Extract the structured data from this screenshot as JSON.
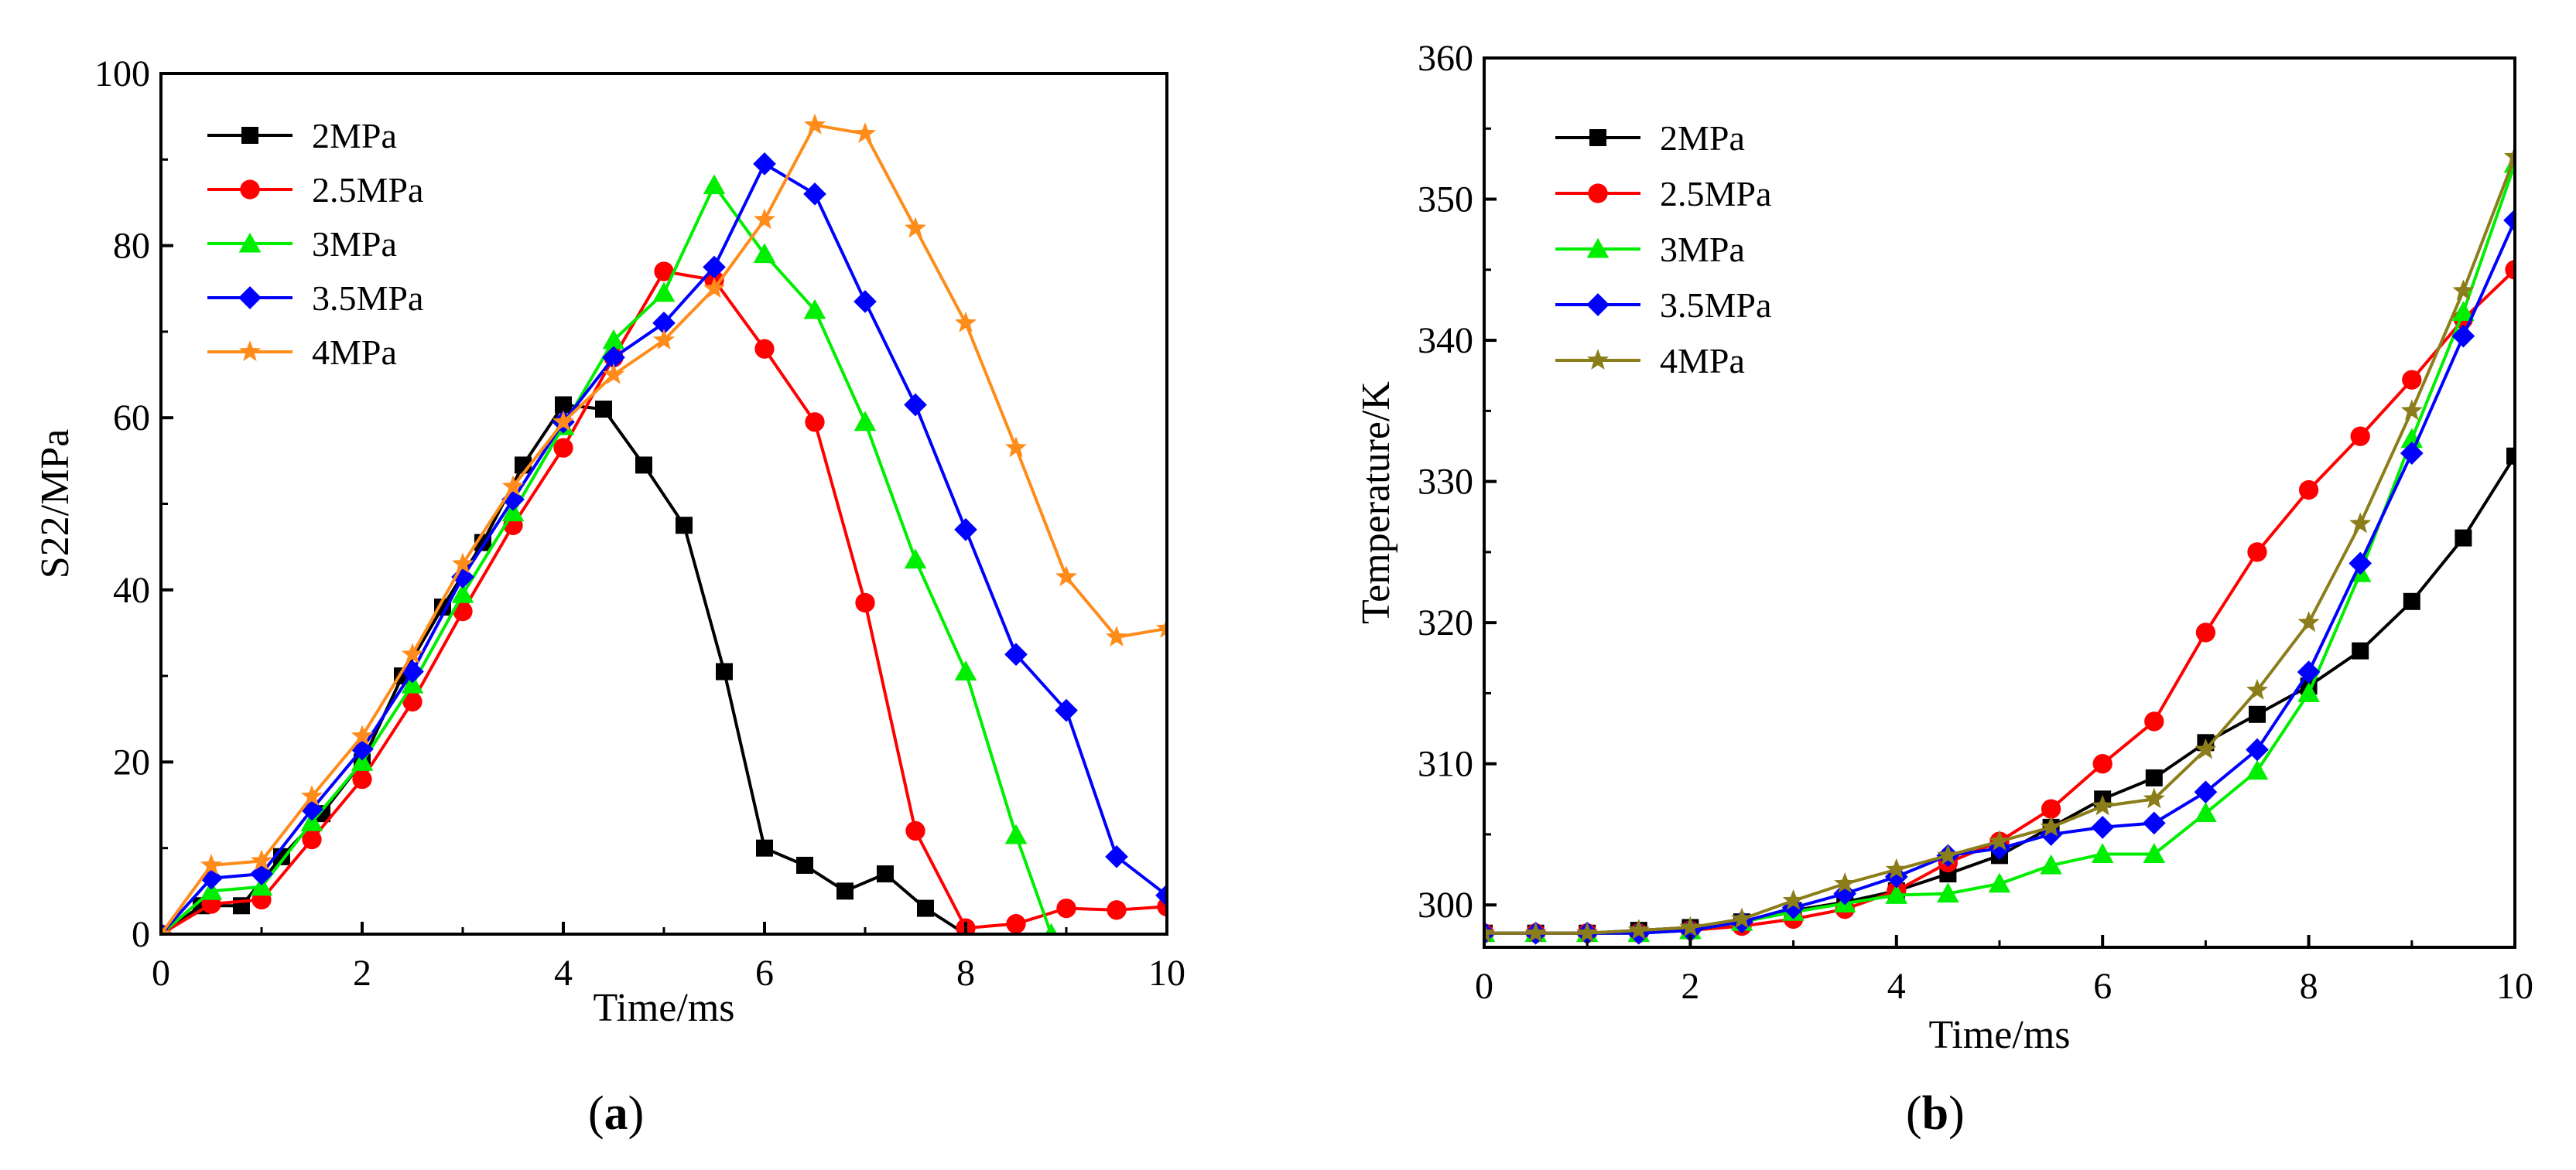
{
  "captions": {
    "a": "a",
    "b": "b"
  },
  "chart_data": [
    {
      "type": "line",
      "panel": "a",
      "title": "",
      "xlabel": "Time/ms",
      "ylabel": "S22/MPa",
      "xlim": [
        0,
        10
      ],
      "ylim": [
        0,
        100
      ],
      "xticks": [
        0,
        2,
        4,
        6,
        8,
        10
      ],
      "yticks": [
        0,
        20,
        40,
        60,
        80,
        100
      ],
      "grid": false,
      "legend_position": "top-left",
      "series": [
        {
          "name": "2MPa",
          "color": "#000000",
          "marker": "square",
          "x": [
            0,
            0.4,
            0.8,
            1.2,
            1.6,
            2.0,
            2.4,
            2.8,
            3.2,
            3.6,
            4.0,
            4.4,
            4.8,
            5.2,
            5.6,
            6.0,
            6.4,
            6.8,
            7.2,
            7.6,
            8.0
          ],
          "y": [
            0,
            3.3,
            3.3,
            9,
            14,
            20,
            30,
            38,
            45.5,
            54.5,
            61.5,
            61,
            54.5,
            47.5,
            30.5,
            10,
            8,
            5,
            7,
            3,
            0
          ]
        },
        {
          "name": "2.5MPa",
          "color": "#ff0000",
          "marker": "circle",
          "x": [
            0,
            0.5,
            1.0,
            1.5,
            2.0,
            2.5,
            3.0,
            3.5,
            4.0,
            4.5,
            5.0,
            5.5,
            6.0,
            6.5,
            7.0,
            7.5,
            8.0,
            8.5,
            9.0,
            9.5,
            10.0
          ],
          "y": [
            0,
            3.5,
            4,
            11,
            18,
            27,
            37.5,
            47.5,
            56.5,
            67,
            77,
            76,
            68,
            59.5,
            38.5,
            12,
            0.7,
            1.2,
            3,
            2.8,
            3.2
          ]
        },
        {
          "name": "3MPa",
          "color": "#00ee00",
          "marker": "triangle",
          "x": [
            0,
            0.5,
            1.0,
            1.5,
            2.0,
            2.5,
            3.0,
            3.5,
            4.0,
            4.5,
            5.0,
            5.5,
            6.0,
            6.5,
            7.0,
            7.5,
            8.0,
            8.5,
            8.85
          ],
          "y": [
            0,
            5,
            5.5,
            13,
            20,
            29,
            39.5,
            49,
            59,
            69,
            74.5,
            87,
            79,
            72.5,
            59.5,
            43.5,
            30.5,
            11.5,
            0
          ]
        },
        {
          "name": "3.5MPa",
          "color": "#0000ff",
          "marker": "diamond",
          "x": [
            0,
            0.5,
            1.0,
            1.5,
            2.0,
            2.5,
            3.0,
            3.5,
            4.0,
            4.5,
            5.0,
            5.5,
            6.0,
            6.5,
            7.0,
            7.5,
            8.0,
            8.5,
            9.0,
            9.5,
            10.0
          ],
          "y": [
            0,
            6.5,
            7,
            14.5,
            21.5,
            30.5,
            41.5,
            50.5,
            59.5,
            67,
            71,
            77.5,
            89.5,
            86,
            73.5,
            61.5,
            47,
            32.5,
            26,
            9,
            4.5
          ]
        },
        {
          "name": "4MPa",
          "color": "#ff8c1a",
          "marker": "star",
          "x": [
            0,
            0.5,
            1.0,
            1.5,
            2.0,
            2.5,
            3.0,
            3.5,
            4.0,
            4.5,
            5.0,
            5.5,
            6.0,
            6.5,
            7.0,
            7.5,
            8.0,
            8.5,
            9.0,
            9.5,
            10.0
          ],
          "y": [
            0,
            8,
            8.5,
            16,
            23,
            32.5,
            43,
            52,
            59.5,
            65,
            69,
            75,
            83,
            94,
            93,
            82,
            71,
            56.5,
            41.5,
            34.5,
            35.5
          ]
        }
      ]
    },
    {
      "type": "line",
      "panel": "b",
      "title": "",
      "xlabel": "Time/ms",
      "ylabel": "Temperature/K",
      "xlim": [
        0,
        10
      ],
      "ylim": [
        297,
        360
      ],
      "xticks": [
        0,
        2,
        4,
        6,
        8,
        10
      ],
      "yticks": [
        300,
        310,
        320,
        330,
        340,
        350,
        360
      ],
      "grid": false,
      "legend_position": "top-left",
      "series": [
        {
          "name": "2MPa",
          "color": "#000000",
          "marker": "square",
          "x": [
            0,
            0.5,
            1.0,
            1.5,
            2.0,
            2.5,
            3.0,
            3.5,
            4.0,
            4.5,
            5.0,
            5.5,
            6.0,
            6.5,
            7.0,
            7.5,
            8.0,
            8.5,
            9.0,
            9.5,
            10.0
          ],
          "y": [
            298,
            298,
            298,
            298.2,
            298.4,
            298.8,
            299.6,
            300.2,
            301,
            302.2,
            303.5,
            305.5,
            307.5,
            309,
            311.5,
            313.5,
            315.5,
            318,
            321.5,
            326,
            331.8
          ]
        },
        {
          "name": "2.5MPa",
          "color": "#ff0000",
          "marker": "circle",
          "x": [
            0,
            0.5,
            1.0,
            1.5,
            2.0,
            2.5,
            3.0,
            3.5,
            4.0,
            4.5,
            5.0,
            5.5,
            6.0,
            6.5,
            7.0,
            7.5,
            8.0,
            8.5,
            9.0,
            9.5,
            10.0
          ],
          "y": [
            298,
            298,
            298,
            298,
            298.2,
            298.5,
            299,
            299.7,
            301,
            303,
            304.5,
            306.8,
            310,
            313,
            319.3,
            325,
            329.4,
            333.2,
            337.2,
            341.5,
            345
          ]
        },
        {
          "name": "3MPa",
          "color": "#00ee00",
          "marker": "triangle",
          "x": [
            0,
            0.5,
            1.0,
            1.5,
            2.0,
            2.5,
            3.0,
            3.5,
            4.0,
            4.5,
            5.0,
            5.5,
            6.0,
            6.5,
            7.0,
            7.5,
            8.0,
            8.5,
            9.0,
            9.5,
            10.0
          ],
          "y": [
            298,
            298,
            298,
            298,
            298.2,
            298.8,
            299.5,
            300.1,
            300.7,
            300.8,
            301.5,
            302.8,
            303.6,
            303.6,
            306.5,
            309.5,
            315,
            323.5,
            333,
            342,
            352.5
          ]
        },
        {
          "name": "3.5MPa",
          "color": "#0000ff",
          "marker": "diamond",
          "x": [
            0,
            0.5,
            1.0,
            1.5,
            2.0,
            2.5,
            3.0,
            3.5,
            4.0,
            4.5,
            5.0,
            5.5,
            6.0,
            6.5,
            7.0,
            7.5,
            8.0,
            8.5,
            9.0,
            9.5,
            10.0
          ],
          "y": [
            298,
            298,
            298,
            298,
            298.2,
            298.8,
            299.8,
            300.8,
            302,
            303.5,
            304,
            305,
            305.5,
            305.8,
            308,
            311,
            316.5,
            324.2,
            332,
            340.3,
            348.5
          ]
        },
        {
          "name": "4MPa",
          "color": "#8b7d1a",
          "marker": "star",
          "x": [
            0,
            0.5,
            1.0,
            1.5,
            2.0,
            2.5,
            3.0,
            3.5,
            4.0,
            4.5,
            5.0,
            5.5,
            6.0,
            6.5,
            7.0,
            7.5,
            8.0,
            8.5,
            9.0,
            9.5,
            10.0
          ],
          "y": [
            298,
            298,
            298,
            298.2,
            298.4,
            299,
            300.3,
            301.5,
            302.5,
            303.5,
            304.5,
            305.5,
            307,
            307.5,
            311,
            315.2,
            320,
            327,
            335,
            343.5,
            353
          ]
        }
      ]
    }
  ]
}
